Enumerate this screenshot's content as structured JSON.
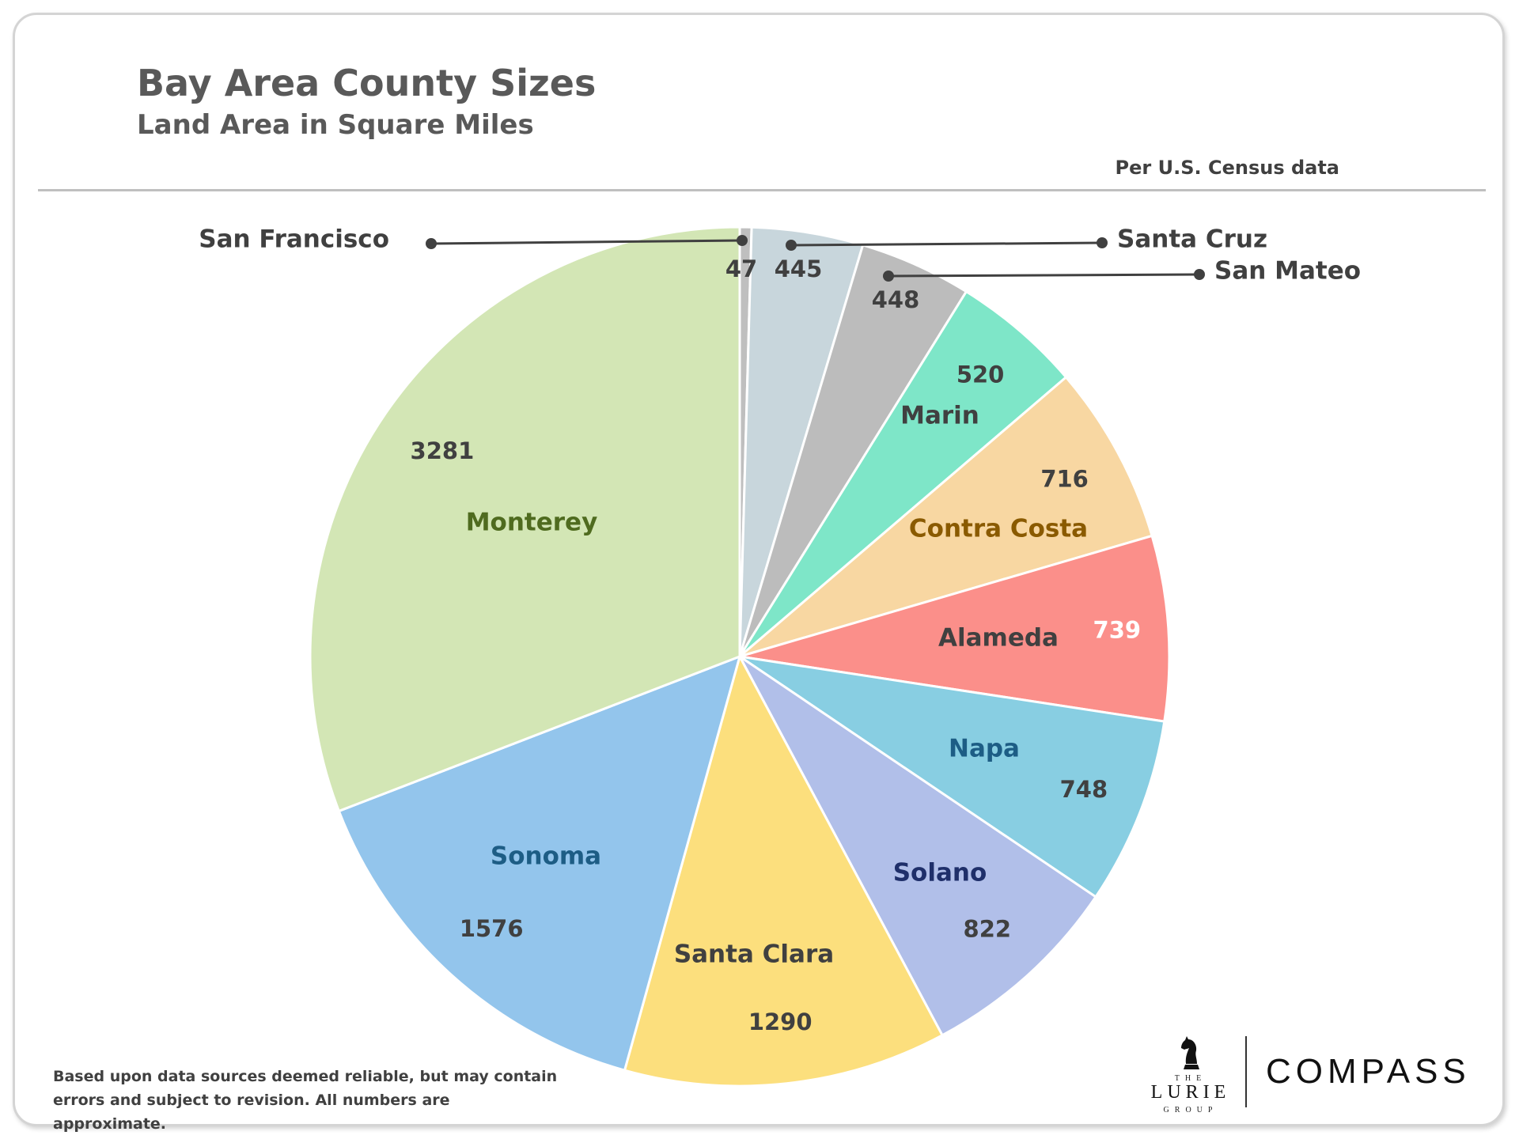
{
  "header": {
    "title": "Bay Area County Sizes",
    "subtitle": "Land Area in Square Miles",
    "source_note": "Per U.S. Census data"
  },
  "footer": {
    "disclaimer": "Based upon data sources deemed reliable, but may contain errors and subject to revision. All numbers are approximate.",
    "brand_the": "THE",
    "brand_name": "LURIE",
    "brand_group": "GROUP",
    "brand_compass": "COMPASS"
  },
  "chart_data": {
    "type": "pie",
    "title": "Bay Area County Sizes",
    "subtitle": "Land Area in Square Miles",
    "start_angle_deg": 0,
    "direction": "clockwise",
    "slices": [
      {
        "label": "San Francisco",
        "value": 47,
        "color": "#bfbfbf",
        "label_color": "#404040",
        "value_color": "#404040",
        "callout": "left"
      },
      {
        "label": "Santa Cruz",
        "value": 445,
        "color": "#c8d6dc",
        "label_color": "#404040",
        "value_color": "#404040",
        "callout": "right"
      },
      {
        "label": "San Mateo",
        "value": 448,
        "color": "#bcbcbc",
        "label_color": "#404040",
        "value_color": "#404040",
        "callout": "right"
      },
      {
        "label": "Marin",
        "value": 520,
        "color": "#7ee6c8",
        "label_color": "#404040",
        "value_color": "#404040"
      },
      {
        "label": "Contra Costa",
        "value": 716,
        "color": "#f8d7a2",
        "label_color": "#8a5a00",
        "value_color": "#404040"
      },
      {
        "label": "Alameda",
        "value": 739,
        "color": "#fb8f8a",
        "label_color": "#404040",
        "value_color": "#ffffff"
      },
      {
        "label": "Napa",
        "value": 748,
        "color": "#88cee2",
        "label_color": "#1d5d85",
        "value_color": "#404040"
      },
      {
        "label": "Solano",
        "value": 822,
        "color": "#b1bfe9",
        "label_color": "#1f2f6a",
        "value_color": "#404040"
      },
      {
        "label": "Santa Clara",
        "value": 1290,
        "color": "#fcdf7d",
        "label_color": "#404040",
        "value_color": "#404040"
      },
      {
        "label": "Sonoma",
        "value": 1576,
        "color": "#93c5ec",
        "label_color": "#1d5d85",
        "value_color": "#404040"
      },
      {
        "label": "Monterey",
        "value": 3281,
        "color": "#d3e6b5",
        "label_color": "#4f6b1f",
        "value_color": "#404040"
      }
    ]
  }
}
